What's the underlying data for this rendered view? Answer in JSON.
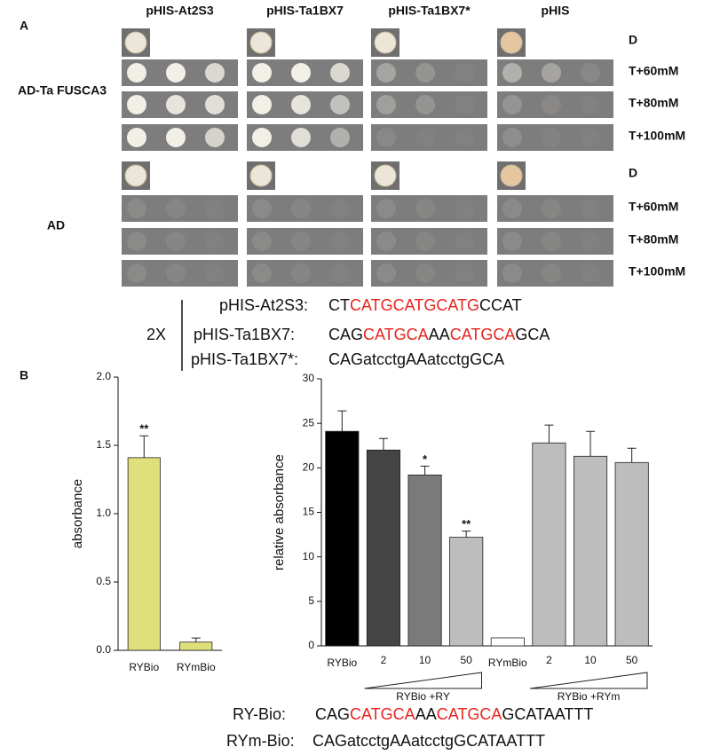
{
  "panel_a": {
    "label": "A",
    "columns": [
      "pHIS-At2S3",
      "pHIS-Ta1BX7",
      "pHIS-Ta1BX7*",
      "pHIS"
    ],
    "rows": [
      {
        "label": "AD-Ta FUSCA3",
        "conditions": [
          "D",
          "T+60mM",
          "T+80mM",
          "T+100mM"
        ]
      },
      {
        "label": "AD",
        "conditions": [
          "D",
          "T+60mM",
          "T+80mM",
          "T+100mM"
        ]
      }
    ]
  },
  "construct": {
    "multiplier": "2X",
    "sequences": [
      {
        "name": "pHIS-At2S3:",
        "segments": [
          {
            "text": "CT",
            "color": "#111111"
          },
          {
            "text": "CATGCATGCATG",
            "color": "#e8241c"
          },
          {
            "text": "CCAT",
            "color": "#111111"
          }
        ]
      },
      {
        "name": "pHIS-Ta1BX7:",
        "segments": [
          {
            "text": "CAG",
            "color": "#111111"
          },
          {
            "text": "CATGCA",
            "color": "#e8241c"
          },
          {
            "text": "AA",
            "color": "#111111"
          },
          {
            "text": "CATGCA",
            "color": "#e8241c"
          },
          {
            "text": "GCA",
            "color": "#111111"
          }
        ]
      },
      {
        "name": "pHIS-Ta1BX7*:",
        "segments": [
          {
            "text": "CAGatcctgAAatcctgGCA",
            "color": "#111111"
          }
        ]
      }
    ]
  },
  "panel_b": {
    "label": "B"
  },
  "chart_data": [
    {
      "type": "bar",
      "y_label": "absorbance",
      "categories": [
        "RYBio",
        "RYmBio"
      ],
      "values": [
        1.41,
        0.06
      ],
      "errors": [
        0.16,
        0.03
      ],
      "colors": [
        "#dfe07c",
        "#dfe07c"
      ],
      "annotations": [
        "**",
        null
      ],
      "ylim": [
        0,
        2.0
      ],
      "yticks": [
        {
          "value": 0,
          "label": "0.0"
        },
        0.5,
        {
          "value": 1.0,
          "label": "1.0"
        },
        1.5,
        {
          "value": 2.0,
          "label": "2.0"
        }
      ]
    },
    {
      "type": "bar",
      "y_label": "relative absorbance",
      "categories": [
        "RYBio",
        "2",
        "10",
        "50",
        "RYmBio",
        "2",
        "10",
        "50"
      ],
      "values": [
        24.1,
        22.0,
        19.2,
        12.2,
        0.9,
        22.8,
        21.3,
        20.6
      ],
      "errors": [
        2.3,
        1.3,
        1.0,
        0.7,
        null,
        2.0,
        2.8,
        1.6
      ],
      "colors": [
        "#000000",
        "#444444",
        "#7a7a7a",
        "#bdbdbd",
        "#ffffff",
        "#bdbdbd",
        "#bdbdbd",
        "#bdbdbd"
      ],
      "annotations": [
        null,
        null,
        "*",
        "**",
        null,
        null,
        null,
        null
      ],
      "groups": [
        {
          "label": "RYBio +RY"
        },
        {
          "label": "RYBio +RYm"
        }
      ],
      "ylim": [
        0,
        30
      ],
      "yticks": [
        0,
        5,
        10,
        15,
        20,
        25,
        30
      ]
    }
  ],
  "probes": [
    {
      "name": "RY-Bio:",
      "segments": [
        {
          "text": "CAG",
          "color": "#111111"
        },
        {
          "text": "CATGCA",
          "color": "#e8241c"
        },
        {
          "text": "AA",
          "color": "#111111"
        },
        {
          "text": "CATGCA",
          "color": "#e8241c"
        },
        {
          "text": "GCATAATTT",
          "color": "#111111"
        }
      ]
    },
    {
      "name": "RYm-Bio:",
      "segments": [
        {
          "text": "CAGatcctgAAatcctgGCATAATTT",
          "color": "#111111"
        }
      ]
    }
  ]
}
